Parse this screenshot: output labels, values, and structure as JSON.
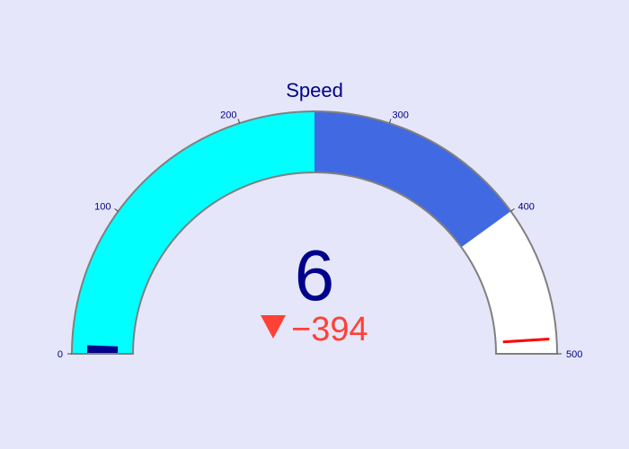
{
  "chart_data": {
    "type": "gauge",
    "title": "Speed",
    "value": 6,
    "delta": {
      "reference": 400,
      "display": "−394",
      "direction": "decreasing"
    },
    "axis": {
      "range": [
        0,
        500
      ],
      "ticks": [
        0,
        100,
        200,
        300,
        400,
        500
      ],
      "tick_labels": [
        "0",
        "100",
        "200",
        "300",
        "400",
        "500"
      ]
    },
    "steps": [
      {
        "range": [
          0,
          250
        ],
        "color": "#00ffff"
      },
      {
        "range": [
          250,
          400
        ],
        "color": "#4169e1"
      }
    ],
    "threshold": {
      "value": 490,
      "color": "#ff0000"
    },
    "bar_color": "#00008b",
    "colors": {
      "background": "#e5e6f9",
      "gauge_fill": "#ffffff",
      "border": "#808080",
      "text": "#00008b",
      "delta_decreasing": "#ff4136"
    }
  }
}
